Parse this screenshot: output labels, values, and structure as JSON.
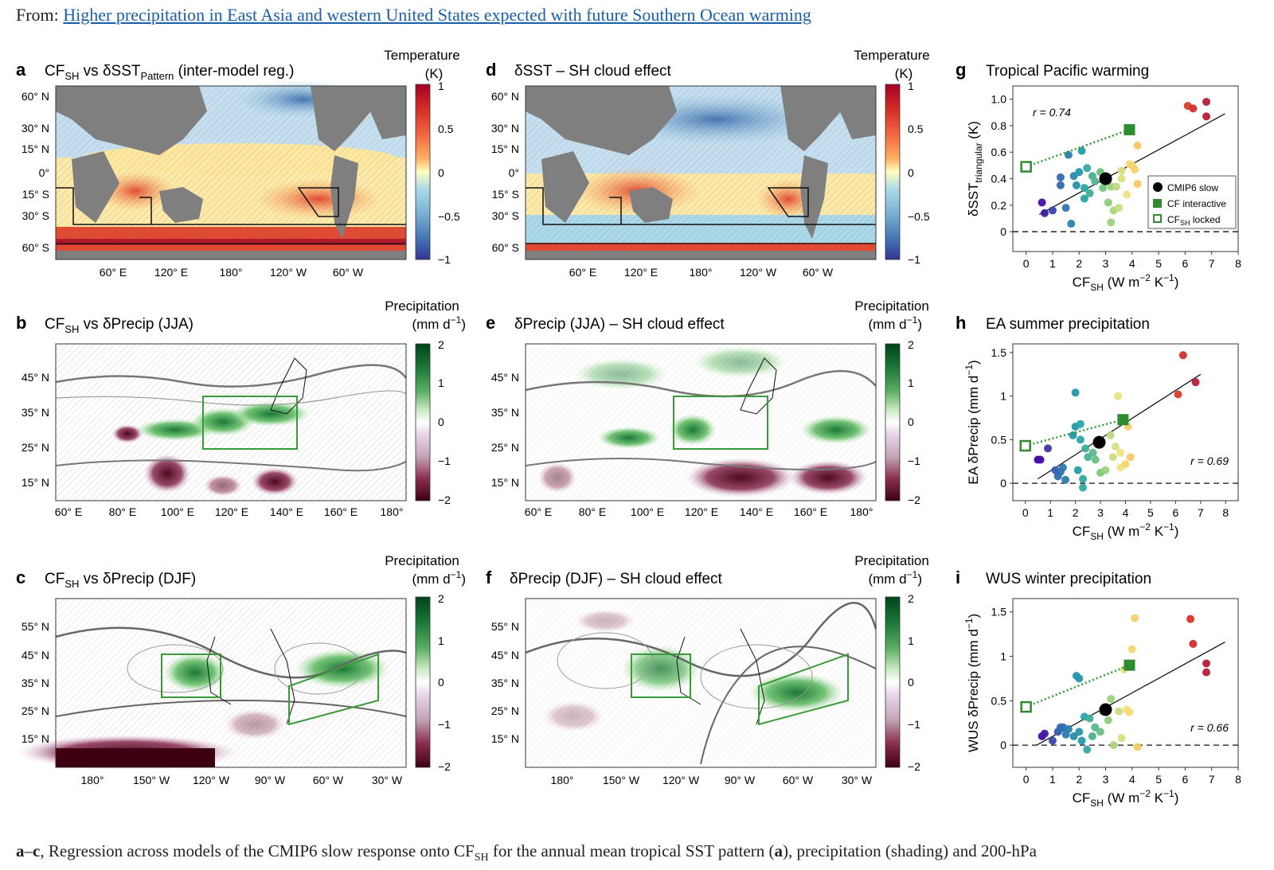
{
  "header": {
    "prefix": "From:",
    "link_text": "Higher precipitation in East Asia and western United States expected with future Southern Ocean warming"
  },
  "panels": {
    "a": {
      "letter": "a",
      "title": "CF",
      "title_sub": "SH",
      "title_mid": " vs δSST",
      "title_sub2": "Pattern",
      "title_tail": " (inter-model reg.)",
      "cbar_title1": "Temperature",
      "cbar_title2": "(K)",
      "cbar_ticks": [
        "1",
        "0.5",
        "0",
        "−0.5",
        "−1"
      ],
      "lat_labels": [
        "60° N",
        "30° N",
        "15° N",
        "0°",
        "15° S",
        "30° S",
        "60° S"
      ],
      "lon_labels": [
        "60° E",
        "120° E",
        "180°",
        "120° W",
        "60° W"
      ]
    },
    "d": {
      "letter": "d",
      "title": "δSST – SH cloud effect",
      "cbar_title1": "Temperature",
      "cbar_title2": "(K)",
      "cbar_ticks": [
        "1",
        "0.5",
        "0",
        "−0.5",
        "−1"
      ],
      "lat_labels": [
        "60° N",
        "30° N",
        "15° N",
        "0°",
        "15° S",
        "30° S",
        "60° S"
      ],
      "lon_labels": [
        "60° E",
        "120° E",
        "180°",
        "120° W",
        "60° W"
      ]
    },
    "b": {
      "letter": "b",
      "title": "CF",
      "title_sub": "SH",
      "title_tail": " vs δPrecip (JJA)",
      "cbar_title1": "Precipitation",
      "cbar_title2": "(mm d",
      "cbar_title2_sup": "−1",
      "cbar_title2_end": ")",
      "cbar_ticks": [
        "2",
        "1",
        "0",
        "−1",
        "−2"
      ],
      "lat_labels": [
        "45° N",
        "35° N",
        "25° N",
        "15° N"
      ],
      "lon_labels": [
        "60° E",
        "80° E",
        "100° E",
        "120° E",
        "140° E",
        "160° E",
        "180°"
      ]
    },
    "e": {
      "letter": "e",
      "title": "δPrecip (JJA) – SH cloud effect",
      "cbar_title1": "Precipitation",
      "cbar_title2": "(mm d",
      "cbar_title2_sup": "−1",
      "cbar_title2_end": ")",
      "cbar_ticks": [
        "2",
        "1",
        "0",
        "−1",
        "−2"
      ],
      "lat_labels": [
        "45° N",
        "35° N",
        "25° N",
        "15° N"
      ],
      "lon_labels": [
        "60° E",
        "80° E",
        "100° E",
        "120° E",
        "140° E",
        "160° E",
        "180°"
      ]
    },
    "c": {
      "letter": "c",
      "title": "CF",
      "title_sub": "SH",
      "title_tail": " vs δPrecip (DJF)",
      "cbar_title1": "Precipitation",
      "cbar_title2": "(mm d",
      "cbar_title2_sup": "−1",
      "cbar_title2_end": ")",
      "cbar_ticks": [
        "2",
        "1",
        "0",
        "−1",
        "−2"
      ],
      "lat_labels": [
        "55° N",
        "45° N",
        "35° N",
        "25° N",
        "15° N"
      ],
      "lon_labels": [
        "180°",
        "150° W",
        "120° W",
        "90° W",
        "60° W",
        "30° W"
      ]
    },
    "f": {
      "letter": "f",
      "title": "δPrecip (DJF) – SH cloud effect",
      "cbar_title1": "Precipitation",
      "cbar_title2": "(mm d",
      "cbar_title2_sup": "−1",
      "cbar_title2_end": ")",
      "cbar_ticks": [
        "2",
        "1",
        "0",
        "−1",
        "−2"
      ],
      "lat_labels": [
        "55° N",
        "45° N",
        "35° N",
        "25° N",
        "15° N"
      ],
      "lon_labels": [
        "180°",
        "150° W",
        "120° W",
        "90° W",
        "60° W",
        "30° W"
      ]
    }
  },
  "chart_data": [
    {
      "id": "g",
      "letter": "g",
      "type": "scatter",
      "title": "Tropical Pacific warming",
      "xlabel": "CF",
      "xlabel_sub": "SH",
      "xlabel_units": " (W m",
      "xlabel_sup1": "−2",
      "xlabel_mid": " K",
      "xlabel_sup2": "−1",
      "xlabel_end": ")",
      "ylabel": "δSST",
      "ylabel_sub": "triangular",
      "ylabel_units": " (K)",
      "xlim": [
        -0.5,
        8
      ],
      "ylim": [
        -0.15,
        1.1
      ],
      "xticks": [
        0,
        1,
        2,
        3,
        4,
        5,
        6,
        7,
        8
      ],
      "yticks": [
        0,
        0.2,
        0.4,
        0.6,
        0.8,
        1.0
      ],
      "ytick_labels": [
        "0",
        "0.2",
        "0.4",
        "0.6",
        "0.8",
        "1.0"
      ],
      "r_label": "r = 0.74",
      "r_pos": "top-left",
      "legend": [
        "CMIP6 slow",
        "CF interactive",
        "CF",
        "SH",
        " locked"
      ],
      "fit": {
        "x0": 0.5,
        "y0": 0.13,
        "x1": 7.5,
        "y1": 0.89
      },
      "cf_line": {
        "x0": 0,
        "y0": 0.49,
        "x1": 3.9,
        "y1": 0.77
      },
      "cmip_slow": {
        "x": 3.0,
        "y": 0.4
      },
      "cf_interactive": {
        "x": 3.9,
        "y": 0.77
      },
      "cf_locked": {
        "x": 0,
        "y": 0.49
      },
      "points": [
        [
          0.6,
          0.22
        ],
        [
          0.7,
          0.14
        ],
        [
          1.0,
          0.16
        ],
        [
          1.3,
          0.41
        ],
        [
          1.3,
          0.35
        ],
        [
          1.5,
          0.18
        ],
        [
          1.6,
          0.58
        ],
        [
          1.7,
          0.06
        ],
        [
          1.8,
          0.42
        ],
        [
          1.9,
          0.35
        ],
        [
          2.0,
          0.45
        ],
        [
          2.1,
          0.61
        ],
        [
          2.2,
          0.33
        ],
        [
          2.2,
          0.25
        ],
        [
          2.3,
          0.48
        ],
        [
          2.4,
          0.29
        ],
        [
          2.5,
          0.42
        ],
        [
          2.6,
          0.38
        ],
        [
          2.8,
          0.45
        ],
        [
          2.9,
          0.33
        ],
        [
          3.1,
          0.22
        ],
        [
          3.2,
          0.07
        ],
        [
          3.2,
          0.34
        ],
        [
          3.3,
          0.16
        ],
        [
          3.4,
          0.34
        ],
        [
          3.5,
          0.18
        ],
        [
          3.6,
          0.4
        ],
        [
          3.6,
          0.46
        ],
        [
          3.8,
          0.28
        ],
        [
          3.9,
          0.51
        ],
        [
          4.0,
          0.5
        ],
        [
          4.1,
          0.47
        ],
        [
          4.2,
          0.36
        ],
        [
          4.2,
          0.65
        ],
        [
          6.1,
          0.95
        ],
        [
          6.3,
          0.93
        ],
        [
          6.8,
          0.98
        ],
        [
          6.8,
          0.87
        ]
      ]
    },
    {
      "id": "h",
      "letter": "h",
      "type": "scatter",
      "title": "EA summer precipitation",
      "xlabel": "CF",
      "xlabel_sub": "SH",
      "xlabel_units": " (W m",
      "xlabel_sup1": "−2",
      "xlabel_mid": " K",
      "xlabel_sup2": "−1",
      "xlabel_end": ")",
      "ylabel": "EA δPrecip (mm d",
      "ylabel_sup": "−1",
      "ylabel_end": ")",
      "xlim": [
        -0.5,
        8.5
      ],
      "ylim": [
        -0.2,
        1.6
      ],
      "xticks": [
        0,
        1,
        2,
        3,
        4,
        5,
        6,
        7,
        8
      ],
      "yticks": [
        0,
        0.5,
        1,
        1.5
      ],
      "ytick_labels": [
        "0",
        "0.5",
        "1",
        "1.5"
      ],
      "r_label": "r = 0.69",
      "r_pos": "bottom-right",
      "fit": {
        "x0": 0.5,
        "y0": 0.05,
        "x1": 7.0,
        "y1": 1.25
      },
      "cf_line": {
        "x0": 0,
        "y0": 0.43,
        "x1": 3.9,
        "y1": 0.73
      },
      "cmip_slow": {
        "x": 2.95,
        "y": 0.47
      },
      "cf_interactive": {
        "x": 3.9,
        "y": 0.73
      },
      "cf_locked": {
        "x": 0,
        "y": 0.43
      },
      "points": [
        [
          0.5,
          0.27
        ],
        [
          0.6,
          0.27
        ],
        [
          0.9,
          0.4
        ],
        [
          1.2,
          0.15
        ],
        [
          1.3,
          0.08
        ],
        [
          1.4,
          0.13
        ],
        [
          1.5,
          0.18
        ],
        [
          1.6,
          0.04
        ],
        [
          1.9,
          0.55
        ],
        [
          2.0,
          1.04
        ],
        [
          2.0,
          0.65
        ],
        [
          2.1,
          0.15
        ],
        [
          2.2,
          0.68
        ],
        [
          2.2,
          0.5
        ],
        [
          2.3,
          0.05
        ],
        [
          2.3,
          -0.05
        ],
        [
          2.4,
          0.4
        ],
        [
          2.5,
          0.3
        ],
        [
          2.7,
          0.35
        ],
        [
          2.8,
          0.27
        ],
        [
          3.0,
          0.12
        ],
        [
          3.2,
          0.15
        ],
        [
          3.4,
          0.55
        ],
        [
          3.5,
          0.3
        ],
        [
          3.6,
          0.42
        ],
        [
          3.7,
          1.0
        ],
        [
          3.8,
          0.35
        ],
        [
          3.8,
          0.18
        ],
        [
          4.0,
          0.22
        ],
        [
          4.1,
          0.65
        ],
        [
          4.2,
          0.3
        ],
        [
          6.1,
          1.02
        ],
        [
          6.3,
          1.47
        ],
        [
          6.8,
          1.16
        ]
      ]
    },
    {
      "id": "i",
      "letter": "i",
      "type": "scatter",
      "title": "WUS winter precipitation",
      "xlabel": "CF",
      "xlabel_sub": "SH",
      "xlabel_units": " (W m",
      "xlabel_sup1": "−2",
      "xlabel_mid": " K",
      "xlabel_sup2": "−1",
      "xlabel_end": ")",
      "ylabel": "WUS δPrecip (mm d",
      "ylabel_sup": "−1",
      "ylabel_end": ")",
      "xlim": [
        -0.5,
        8
      ],
      "ylim": [
        -0.25,
        1.65
      ],
      "xticks": [
        0,
        1,
        2,
        3,
        4,
        5,
        6,
        7,
        8
      ],
      "yticks": [
        0,
        0.5,
        1,
        1.5
      ],
      "ytick_labels": [
        "0",
        "0.5",
        "1",
        "1.5"
      ],
      "r_label": "r = 0.66",
      "r_pos": "bottom-right",
      "fit": {
        "x0": 0.4,
        "y0": 0.0,
        "x1": 7.5,
        "y1": 1.16
      },
      "cf_line": {
        "x0": 0,
        "y0": 0.43,
        "x1": 3.9,
        "y1": 0.9
      },
      "cmip_slow": {
        "x": 3.0,
        "y": 0.4
      },
      "cf_interactive": {
        "x": 3.9,
        "y": 0.9
      },
      "cf_locked": {
        "x": 0,
        "y": 0.43
      },
      "points": [
        [
          0.6,
          0.1
        ],
        [
          0.7,
          0.13
        ],
        [
          1.0,
          0.05
        ],
        [
          1.2,
          0.15
        ],
        [
          1.3,
          0.2
        ],
        [
          1.4,
          0.2
        ],
        [
          1.5,
          0.12
        ],
        [
          1.6,
          0.18
        ],
        [
          1.8,
          0.1
        ],
        [
          1.9,
          0.78
        ],
        [
          2.0,
          0.75
        ],
        [
          2.0,
          0.15
        ],
        [
          2.1,
          0.05
        ],
        [
          2.2,
          0.32
        ],
        [
          2.3,
          -0.05
        ],
        [
          2.4,
          0.3
        ],
        [
          2.5,
          0.1
        ],
        [
          2.6,
          0.2
        ],
        [
          2.8,
          0.15
        ],
        [
          2.9,
          0.38
        ],
        [
          3.1,
          0.28
        ],
        [
          3.2,
          0.52
        ],
        [
          3.3,
          0.0
        ],
        [
          3.5,
          0.38
        ],
        [
          3.6,
          0.08
        ],
        [
          3.7,
          0.85
        ],
        [
          3.8,
          0.4
        ],
        [
          3.9,
          0.37
        ],
        [
          4.0,
          1.08
        ],
        [
          4.1,
          1.43
        ],
        [
          4.2,
          -0.02
        ],
        [
          6.2,
          1.42
        ],
        [
          6.3,
          1.14
        ],
        [
          6.8,
          0.92
        ],
        [
          6.8,
          0.82
        ]
      ]
    }
  ],
  "caption": {
    "bold": "a",
    "dash": "–",
    "bold2": "c",
    "text1": ", Regression across models of the CMIP6 slow response onto CF",
    "sub": "SH",
    "text2": " for the annual mean tropical SST pattern (",
    "bold3": "a",
    "text3": "), precipitation (shading) and 200-hPa"
  },
  "colors": {
    "link": "#1a5fa8",
    "land": "#7f7f7f",
    "green_box": "#3a9a3a",
    "dotted": "#2e9b2e",
    "interactive": "#2e8b2e"
  }
}
